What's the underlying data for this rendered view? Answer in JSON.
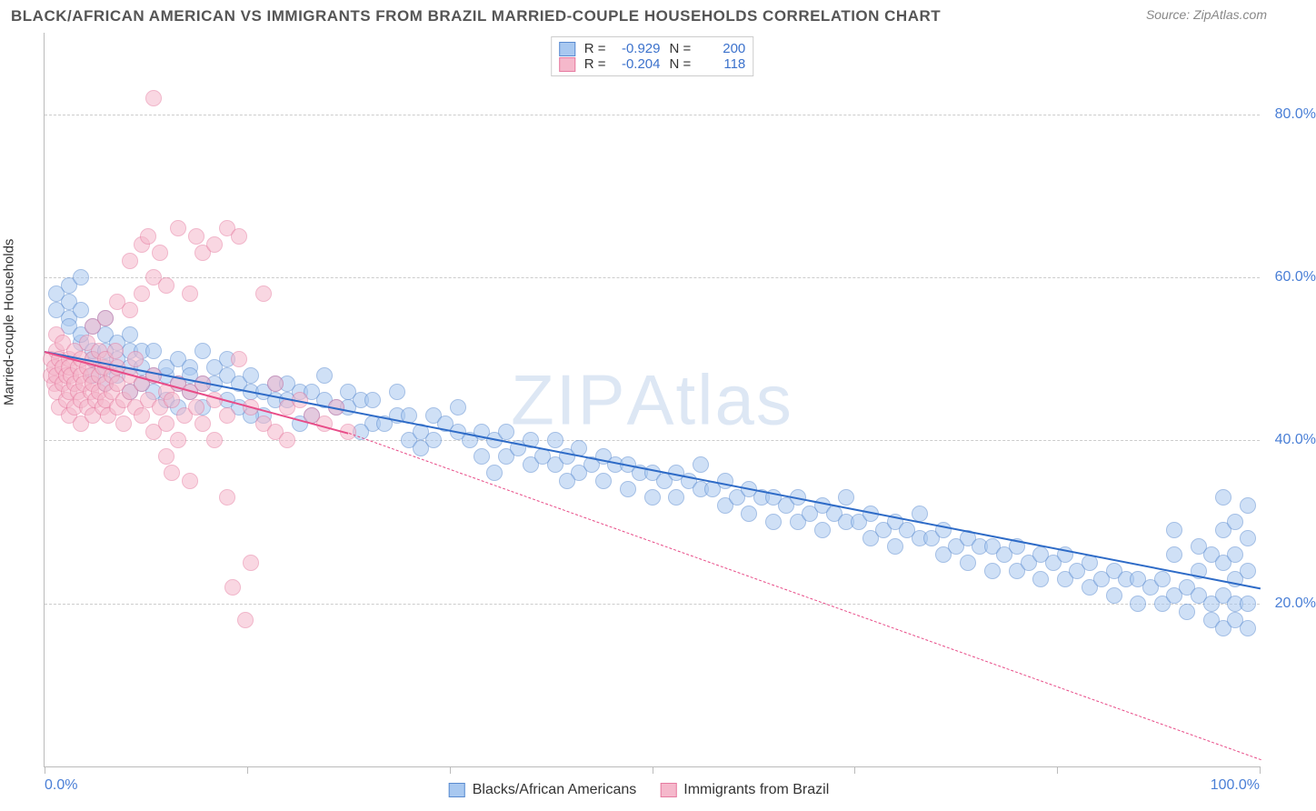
{
  "title": "BLACK/AFRICAN AMERICAN VS IMMIGRANTS FROM BRAZIL MARRIED-COUPLE HOUSEHOLDS CORRELATION CHART",
  "source": "ZipAtlas.com",
  "y_label": "Married-couple Households",
  "watermark": "ZIPAtlas",
  "xlim": [
    0,
    100
  ],
  "ylim": [
    0,
    90
  ],
  "x_ticks": [
    0,
    16.67,
    33.33,
    50,
    66.67,
    83.33,
    100
  ],
  "x_tick_labels_shown": {
    "0": "0.0%",
    "100": "100.0%"
  },
  "y_gridlines": [
    20,
    40,
    60,
    80
  ],
  "y_tick_labels": [
    "20.0%",
    "40.0%",
    "60.0%",
    "80.0%"
  ],
  "grid_color": "#cccccc",
  "axis_color": "#bbbbbb",
  "tick_label_color": "#4a7fd6",
  "title_color": "#555555",
  "title_fontsize": 17,
  "tick_fontsize": 16,
  "ylabel_fontsize": 15,
  "legend_fontsize": 16,
  "stats_fontsize": 15,
  "point_radius": 9,
  "point_opacity": 0.55,
  "series": [
    {
      "label": "Blacks/African Americans",
      "r": "-0.929",
      "n": "200",
      "fill": "#a8c8f0",
      "stroke": "#5a8bd0",
      "trend_color": "#2e6bc7",
      "trend": {
        "x1": 0,
        "y1": 51,
        "x2": 100,
        "y2": 22,
        "style": "solid",
        "width": 2.5
      },
      "points": [
        [
          1,
          56
        ],
        [
          1,
          58
        ],
        [
          2,
          55
        ],
        [
          2,
          54
        ],
        [
          2,
          57
        ],
        [
          2,
          59
        ],
        [
          3,
          52
        ],
        [
          3,
          56
        ],
        [
          3,
          53
        ],
        [
          3,
          60
        ],
        [
          4,
          50
        ],
        [
          4,
          54
        ],
        [
          4,
          51
        ],
        [
          4,
          48
        ],
        [
          5,
          55
        ],
        [
          5,
          49
        ],
        [
          5,
          53
        ],
        [
          5,
          47
        ],
        [
          6,
          50
        ],
        [
          6,
          52
        ],
        [
          6,
          48
        ],
        [
          7,
          49
        ],
        [
          7,
          51
        ],
        [
          7,
          46
        ],
        [
          8,
          49
        ],
        [
          8,
          47
        ],
        [
          8,
          51
        ],
        [
          9,
          51
        ],
        [
          9,
          48
        ],
        [
          9,
          46
        ],
        [
          10,
          48
        ],
        [
          10,
          49
        ],
        [
          10,
          45
        ],
        [
          11,
          50
        ],
        [
          11,
          47
        ],
        [
          12,
          49
        ],
        [
          12,
          46
        ],
        [
          12,
          48
        ],
        [
          13,
          51
        ],
        [
          13,
          47
        ],
        [
          14,
          47
        ],
        [
          14,
          49
        ],
        [
          15,
          48
        ],
        [
          15,
          45
        ],
        [
          15,
          50
        ],
        [
          16,
          47
        ],
        [
          16,
          44
        ],
        [
          17,
          46
        ],
        [
          17,
          48
        ],
        [
          18,
          46
        ],
        [
          18,
          43
        ],
        [
          19,
          47
        ],
        [
          19,
          45
        ],
        [
          20,
          45
        ],
        [
          20,
          47
        ],
        [
          21,
          46
        ],
        [
          22,
          46
        ],
        [
          22,
          43
        ],
        [
          23,
          45
        ],
        [
          23,
          48
        ],
        [
          24,
          44
        ],
        [
          25,
          44
        ],
        [
          25,
          46
        ],
        [
          26,
          45
        ],
        [
          27,
          42
        ],
        [
          27,
          45
        ],
        [
          28,
          42
        ],
        [
          29,
          43
        ],
        [
          29,
          46
        ],
        [
          30,
          43
        ],
        [
          30,
          40
        ],
        [
          31,
          41
        ],
        [
          32,
          43
        ],
        [
          32,
          40
        ],
        [
          33,
          42
        ],
        [
          34,
          41
        ],
        [
          34,
          44
        ],
        [
          35,
          40
        ],
        [
          36,
          41
        ],
        [
          36,
          38
        ],
        [
          37,
          40
        ],
        [
          38,
          41
        ],
        [
          38,
          38
        ],
        [
          39,
          39
        ],
        [
          40,
          40
        ],
        [
          40,
          37
        ],
        [
          41,
          38
        ],
        [
          42,
          40
        ],
        [
          42,
          37
        ],
        [
          43,
          38
        ],
        [
          44,
          39
        ],
        [
          44,
          36
        ],
        [
          45,
          37
        ],
        [
          46,
          38
        ],
        [
          46,
          35
        ],
        [
          47,
          37
        ],
        [
          48,
          37
        ],
        [
          48,
          34
        ],
        [
          49,
          36
        ],
        [
          50,
          36
        ],
        [
          50,
          33
        ],
        [
          51,
          35
        ],
        [
          52,
          36
        ],
        [
          52,
          33
        ],
        [
          53,
          35
        ],
        [
          54,
          34
        ],
        [
          54,
          37
        ],
        [
          55,
          34
        ],
        [
          56,
          35
        ],
        [
          56,
          32
        ],
        [
          57,
          33
        ],
        [
          58,
          34
        ],
        [
          58,
          31
        ],
        [
          59,
          33
        ],
        [
          60,
          33
        ],
        [
          60,
          30
        ],
        [
          61,
          32
        ],
        [
          62,
          33
        ],
        [
          62,
          30
        ],
        [
          63,
          31
        ],
        [
          64,
          32
        ],
        [
          64,
          29
        ],
        [
          65,
          31
        ],
        [
          66,
          30
        ],
        [
          66,
          33
        ],
        [
          67,
          30
        ],
        [
          68,
          31
        ],
        [
          68,
          28
        ],
        [
          69,
          29
        ],
        [
          70,
          30
        ],
        [
          70,
          27
        ],
        [
          71,
          29
        ],
        [
          72,
          28
        ],
        [
          72,
          31
        ],
        [
          73,
          28
        ],
        [
          74,
          29
        ],
        [
          74,
          26
        ],
        [
          75,
          27
        ],
        [
          76,
          28
        ],
        [
          76,
          25
        ],
        [
          77,
          27
        ],
        [
          78,
          27
        ],
        [
          78,
          24
        ],
        [
          79,
          26
        ],
        [
          80,
          27
        ],
        [
          80,
          24
        ],
        [
          81,
          25
        ],
        [
          82,
          26
        ],
        [
          82,
          23
        ],
        [
          83,
          25
        ],
        [
          84,
          26
        ],
        [
          84,
          23
        ],
        [
          85,
          24
        ],
        [
          86,
          25
        ],
        [
          86,
          22
        ],
        [
          87,
          23
        ],
        [
          88,
          24
        ],
        [
          88,
          21
        ],
        [
          89,
          23
        ],
        [
          90,
          23
        ],
        [
          90,
          20
        ],
        [
          91,
          22
        ],
        [
          92,
          23
        ],
        [
          92,
          20
        ],
        [
          93,
          21
        ],
        [
          93,
          26
        ],
        [
          93,
          29
        ],
        [
          94,
          22
        ],
        [
          94,
          19
        ],
        [
          95,
          21
        ],
        [
          95,
          24
        ],
        [
          95,
          27
        ],
        [
          96,
          26
        ],
        [
          96,
          20
        ],
        [
          96,
          18
        ],
        [
          97,
          21
        ],
        [
          97,
          17
        ],
        [
          97,
          25
        ],
        [
          97,
          29
        ],
        [
          97,
          33
        ],
        [
          98,
          20
        ],
        [
          98,
          18
        ],
        [
          98,
          23
        ],
        [
          98,
          26
        ],
        [
          98,
          30
        ],
        [
          99,
          17
        ],
        [
          99,
          20
        ],
        [
          99,
          32
        ],
        [
          99,
          28
        ],
        [
          99,
          24
        ],
        [
          5,
          51
        ],
        [
          7,
          53
        ],
        [
          11,
          44
        ],
        [
          13,
          44
        ],
        [
          17,
          43
        ],
        [
          21,
          42
        ],
        [
          26,
          41
        ],
        [
          31,
          39
        ],
        [
          37,
          36
        ],
        [
          43,
          35
        ]
      ]
    },
    {
      "label": "Immigrants from Brazil",
      "r": "-0.204",
      "n": "118",
      "fill": "#f5b8cb",
      "stroke": "#e67ba0",
      "trend_color": "#e84c88",
      "trend": {
        "x1": 0,
        "y1": 51,
        "x2": 25,
        "y2": 41,
        "style": "solid",
        "width": 2.5
      },
      "trend_ext": {
        "x1": 25,
        "y1": 41,
        "x2": 100,
        "y2": 1,
        "style": "dashed",
        "width": 1.5
      },
      "points": [
        [
          0.5,
          48
        ],
        [
          0.5,
          50
        ],
        [
          0.8,
          49
        ],
        [
          0.8,
          47
        ],
        [
          1,
          51
        ],
        [
          1,
          46
        ],
        [
          1,
          53
        ],
        [
          1,
          48
        ],
        [
          1.2,
          50
        ],
        [
          1.2,
          44
        ],
        [
          1.5,
          49
        ],
        [
          1.5,
          47
        ],
        [
          1.5,
          52
        ],
        [
          1.8,
          48
        ],
        [
          1.8,
          45
        ],
        [
          2,
          50
        ],
        [
          2,
          46
        ],
        [
          2,
          49
        ],
        [
          2,
          43
        ],
        [
          2.2,
          48
        ],
        [
          2.5,
          47
        ],
        [
          2.5,
          51
        ],
        [
          2.5,
          44
        ],
        [
          2.8,
          49
        ],
        [
          2.8,
          46
        ],
        [
          3,
          48
        ],
        [
          3,
          50
        ],
        [
          3,
          45
        ],
        [
          3,
          42
        ],
        [
          3.2,
          47
        ],
        [
          3.5,
          49
        ],
        [
          3.5,
          44
        ],
        [
          3.5,
          52
        ],
        [
          3.8,
          46
        ],
        [
          3.8,
          48
        ],
        [
          4,
          47
        ],
        [
          4,
          50
        ],
        [
          4,
          43
        ],
        [
          4,
          54
        ],
        [
          4.2,
          45
        ],
        [
          4.5,
          48
        ],
        [
          4.5,
          46
        ],
        [
          4.5,
          51
        ],
        [
          4.8,
          44
        ],
        [
          4.8,
          49
        ],
        [
          5,
          47
        ],
        [
          5,
          45
        ],
        [
          5,
          50
        ],
        [
          5,
          55
        ],
        [
          5.2,
          43
        ],
        [
          5.5,
          48
        ],
        [
          5.5,
          46
        ],
        [
          5.8,
          51
        ],
        [
          6,
          44
        ],
        [
          6,
          47
        ],
        [
          6,
          49
        ],
        [
          6,
          57
        ],
        [
          6.5,
          45
        ],
        [
          6.5,
          42
        ],
        [
          7,
          48
        ],
        [
          7,
          46
        ],
        [
          7,
          56
        ],
        [
          7,
          62
        ],
        [
          7.5,
          44
        ],
        [
          7.5,
          50
        ],
        [
          8,
          47
        ],
        [
          8,
          43
        ],
        [
          8,
          58
        ],
        [
          8,
          64
        ],
        [
          8.5,
          45
        ],
        [
          8.5,
          65
        ],
        [
          9,
          48
        ],
        [
          9,
          41
        ],
        [
          9,
          60
        ],
        [
          9,
          82
        ],
        [
          9.5,
          44
        ],
        [
          9.5,
          63
        ],
        [
          10,
          46
        ],
        [
          10,
          42
        ],
        [
          10,
          38
        ],
        [
          10,
          59
        ],
        [
          10.5,
          45
        ],
        [
          10.5,
          36
        ],
        [
          11,
          47
        ],
        [
          11,
          40
        ],
        [
          11,
          66
        ],
        [
          11.5,
          43
        ],
        [
          12,
          46
        ],
        [
          12,
          35
        ],
        [
          12,
          58
        ],
        [
          12.5,
          44
        ],
        [
          12.5,
          65
        ],
        [
          13,
          42
        ],
        [
          13,
          47
        ],
        [
          13,
          63
        ],
        [
          14,
          45
        ],
        [
          14,
          40
        ],
        [
          14,
          64
        ],
        [
          15,
          43
        ],
        [
          15,
          33
        ],
        [
          15,
          66
        ],
        [
          15.5,
          22
        ],
        [
          16,
          50
        ],
        [
          16,
          65
        ],
        [
          16.5,
          18
        ],
        [
          17,
          44
        ],
        [
          17,
          25
        ],
        [
          18,
          58
        ],
        [
          18,
          42
        ],
        [
          19,
          41
        ],
        [
          19,
          47
        ],
        [
          20,
          44
        ],
        [
          20,
          40
        ],
        [
          21,
          45
        ],
        [
          22,
          43
        ],
        [
          23,
          42
        ],
        [
          24,
          44
        ],
        [
          25,
          41
        ]
      ]
    }
  ]
}
